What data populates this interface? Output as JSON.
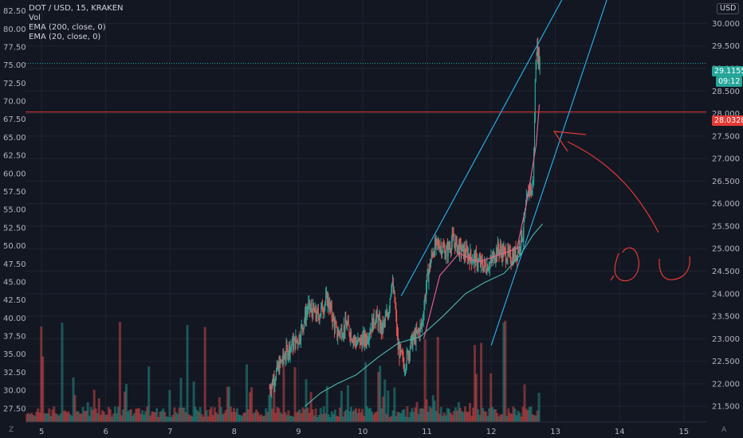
{
  "legend": {
    "symbol": "DOT / USD, 15, KRAKEN",
    "indicators": [
      "Vol",
      "EMA (200, close, 0)",
      "EMA (20, close, 0)"
    ]
  },
  "currency_button": "USD",
  "corner_left": "Z",
  "corner_right": "A",
  "price_tags": {
    "last": "29.1155",
    "countdown": "09:12",
    "line": "28.0328"
  },
  "colors": {
    "background": "#131722",
    "up": "#26a69a",
    "down": "#ef5350",
    "ema200": "#4db6ac",
    "ema20": "#f06292",
    "channel": "#29b6f6",
    "horizontal_line": "#e53935",
    "drawing": "#e53935"
  },
  "chart_data": {
    "type": "candlestick",
    "symbol": "DOT / USD",
    "interval": "15",
    "exchange": "KRAKEN",
    "x_ticks": [
      "5",
      "6",
      "7",
      "8",
      "9",
      "10",
      "11",
      "12",
      "13",
      "14",
      "15"
    ],
    "x_range": [
      4.75,
      15.35
    ],
    "left_axis": {
      "ticks": [
        "82.50",
        "80.00",
        "77.50",
        "75.00",
        "72.50",
        "70.00",
        "67.50",
        "65.00",
        "62.50",
        "60.00",
        "57.50",
        "55.00",
        "52.50",
        "50.00",
        "47.50",
        "45.00",
        "42.50",
        "40.00",
        "37.50",
        "35.00",
        "32.50",
        "30.00",
        "27.50"
      ],
      "range": [
        25.6,
        84.0
      ]
    },
    "right_axis": {
      "ticks": [
        "30.000",
        "29.500",
        "29.000",
        "28.500",
        "28.000",
        "27.500",
        "27.000",
        "26.500",
        "26.000",
        "25.500",
        "25.000",
        "24.500",
        "24.000",
        "23.500",
        "23.000",
        "22.500",
        "22.000",
        "21.500"
      ],
      "range": [
        21.15,
        30.52
      ]
    },
    "price_path": [
      [
        8.55,
        21.9
      ],
      [
        8.7,
        22.4
      ],
      [
        8.85,
        22.8
      ],
      [
        9.0,
        23.0
      ],
      [
        9.15,
        23.7
      ],
      [
        9.3,
        23.5
      ],
      [
        9.45,
        23.9
      ],
      [
        9.6,
        23.1
      ],
      [
        9.75,
        23.3
      ],
      [
        9.9,
        22.9
      ],
      [
        10.05,
        23.0
      ],
      [
        10.2,
        23.5
      ],
      [
        10.3,
        23.2
      ],
      [
        10.4,
        23.6
      ],
      [
        10.45,
        24.3
      ],
      [
        10.5,
        23.8
      ],
      [
        10.55,
        22.8
      ],
      [
        10.65,
        22.4
      ],
      [
        10.75,
        22.9
      ],
      [
        10.85,
        23.1
      ],
      [
        10.92,
        23.3
      ],
      [
        11.0,
        24.3
      ],
      [
        11.1,
        25.0
      ],
      [
        11.2,
        25.1
      ],
      [
        11.3,
        24.9
      ],
      [
        11.4,
        25.2
      ],
      [
        11.5,
        25.0
      ],
      [
        11.6,
        24.9
      ],
      [
        11.7,
        24.8
      ],
      [
        11.8,
        24.7
      ],
      [
        11.9,
        24.6
      ],
      [
        12.0,
        24.7
      ],
      [
        12.1,
        25.0
      ],
      [
        12.2,
        24.9
      ],
      [
        12.3,
        24.8
      ],
      [
        12.4,
        24.9
      ],
      [
        12.5,
        25.4
      ],
      [
        12.55,
        26.0
      ],
      [
        12.6,
        26.4
      ],
      [
        12.63,
        26.2
      ],
      [
        12.66,
        26.7
      ],
      [
        12.68,
        28.3
      ],
      [
        12.7,
        29.5
      ],
      [
        12.73,
        29.3
      ],
      [
        12.76,
        29.1155
      ]
    ],
    "ema20": [
      [
        10.95,
        23.0
      ],
      [
        11.2,
        24.4
      ],
      [
        11.5,
        24.9
      ],
      [
        11.8,
        24.7
      ],
      [
        12.1,
        24.85
      ],
      [
        12.4,
        25.0
      ],
      [
        12.55,
        26.0
      ],
      [
        12.7,
        27.3
      ],
      [
        12.75,
        28.2
      ]
    ],
    "ema200": [
      [
        9.1,
        21.5
      ],
      [
        9.35,
        21.8
      ],
      [
        9.6,
        22.0
      ],
      [
        9.9,
        22.2
      ],
      [
        10.25,
        22.6
      ],
      [
        10.55,
        22.9
      ],
      [
        10.9,
        23.05
      ],
      [
        11.25,
        23.5
      ],
      [
        11.6,
        24.0
      ],
      [
        11.9,
        24.25
      ],
      [
        12.2,
        24.45
      ],
      [
        12.45,
        24.85
      ],
      [
        12.65,
        25.3
      ],
      [
        12.8,
        25.55
      ]
    ],
    "channel_lines": [
      [
        [
          10.6,
          23.95
        ],
        [
          13.1,
          30.52
        ]
      ],
      [
        [
          12.0,
          22.85
        ],
        [
          13.8,
          30.52
        ]
      ]
    ],
    "horizontal_line": 28.0328,
    "last_price": 29.1155,
    "volume_ylim": [
      0,
      100
    ]
  }
}
